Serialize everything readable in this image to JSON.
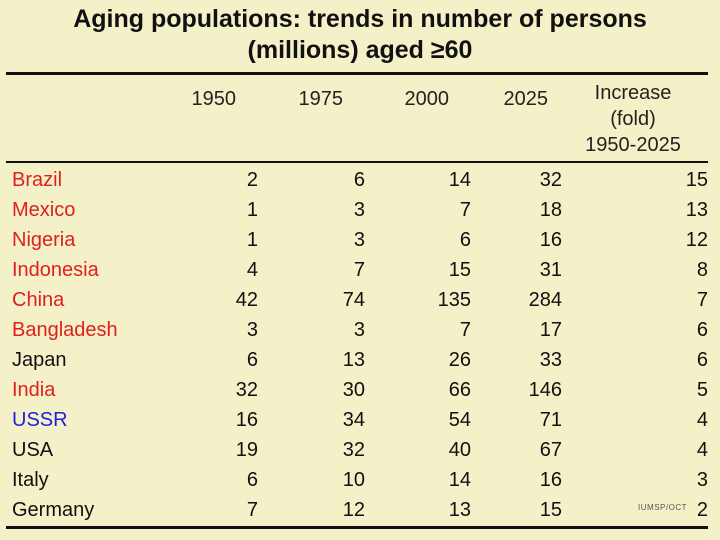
{
  "chart_data": {
    "type": "table",
    "title_line1": "Aging populations: trends in number of persons",
    "title_line2": "(millions) aged ≥60",
    "columns": [
      "1950",
      "1975",
      "2000",
      "2025"
    ],
    "increase_header": [
      "Increase",
      "(fold)",
      "1950-2025"
    ],
    "rows": [
      {
        "country": "Brazil",
        "color": "#e02020",
        "values": [
          "2",
          "6",
          "14",
          "32"
        ],
        "increase": "15"
      },
      {
        "country": "Mexico",
        "color": "#e02020",
        "values": [
          "1",
          "3",
          "7",
          "18"
        ],
        "increase": "13"
      },
      {
        "country": "Nigeria",
        "color": "#e02020",
        "values": [
          "1",
          "3",
          "6",
          "16"
        ],
        "increase": "12"
      },
      {
        "country": "Indonesia",
        "color": "#e02020",
        "values": [
          "4",
          "7",
          "15",
          "31"
        ],
        "increase": "8"
      },
      {
        "country": "China",
        "color": "#e02020",
        "values": [
          "42",
          "74",
          "135",
          "284"
        ],
        "increase": "7"
      },
      {
        "country": "Bangladesh",
        "color": "#e02020",
        "values": [
          "3",
          "3",
          "7",
          "17"
        ],
        "increase": "6"
      },
      {
        "country": "Japan",
        "color": "#111111",
        "values": [
          "6",
          "13",
          "26",
          "33"
        ],
        "increase": "6"
      },
      {
        "country": "India",
        "color": "#e02020",
        "values": [
          "32",
          "30",
          "66",
          "146"
        ],
        "increase": "5"
      },
      {
        "country": "USSR",
        "color": "#2020e0",
        "values": [
          "16",
          "34",
          "54",
          "71"
        ],
        "increase": "4"
      },
      {
        "country": "USA",
        "color": "#111111",
        "values": [
          "19",
          "32",
          "40",
          "67"
        ],
        "increase": "4"
      },
      {
        "country": "Italy",
        "color": "#111111",
        "values": [
          "6",
          "10",
          "14",
          "16"
        ],
        "increase": "3"
      },
      {
        "country": "Germany",
        "color": "#111111",
        "values": [
          "7",
          "12",
          "13",
          "15"
        ],
        "increase": "2"
      }
    ],
    "credit": "IUMSP/OCT"
  }
}
